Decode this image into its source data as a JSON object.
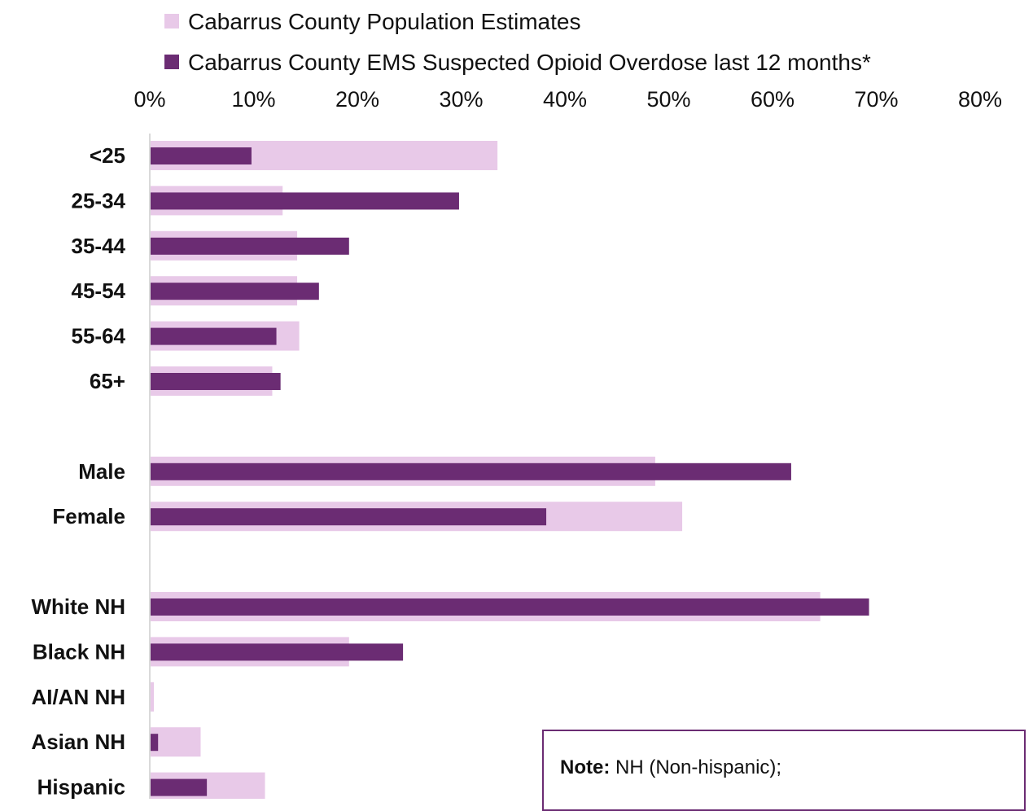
{
  "colors": {
    "population": "#e8c9e8",
    "ems": "#6b2c73",
    "axis": "#d9d9d9"
  },
  "note": {
    "label": "Note:",
    "text": " NH (Non-hispanic);"
  },
  "chart_data": {
    "type": "bar",
    "orientation": "horizontal",
    "title": "",
    "xlabel": "",
    "ylabel": "",
    "xlim": [
      0,
      80
    ],
    "x_ticks": [
      "0%",
      "10%",
      "20%",
      "30%",
      "40%",
      "50%",
      "60%",
      "70%",
      "80%"
    ],
    "legend_position": "top",
    "groups": [
      {
        "categories": [
          "<25",
          "25-34",
          "35-44",
          "45-54",
          "55-64",
          "65+"
        ]
      },
      {
        "categories": [
          "Male",
          "Female"
        ]
      },
      {
        "categories": [
          "White NH",
          "Black NH",
          "AI/AN NH",
          "Asian NH",
          "Hispanic"
        ]
      }
    ],
    "categories": [
      "<25",
      "25-34",
      "35-44",
      "45-54",
      "55-64",
      "65+",
      "Male",
      "Female",
      "White NH",
      "Black NH",
      "AI/AN NH",
      "Asian NH",
      "Hispanic"
    ],
    "series": [
      {
        "name": "Cabarrus County Population Estimates",
        "color": "#e8c9e8",
        "values": [
          33.5,
          12.8,
          14.2,
          14.2,
          14.4,
          11.8,
          48.7,
          51.3,
          64.6,
          19.2,
          0.4,
          4.9,
          11.1
        ]
      },
      {
        "name": "Cabarrus County EMS Suspected Opioid Overdose last 12 months*",
        "color": "#6b2c73",
        "values": [
          9.8,
          29.8,
          19.2,
          16.3,
          12.2,
          12.6,
          61.8,
          38.2,
          69.3,
          24.4,
          0,
          0.8,
          5.5
        ]
      }
    ]
  }
}
